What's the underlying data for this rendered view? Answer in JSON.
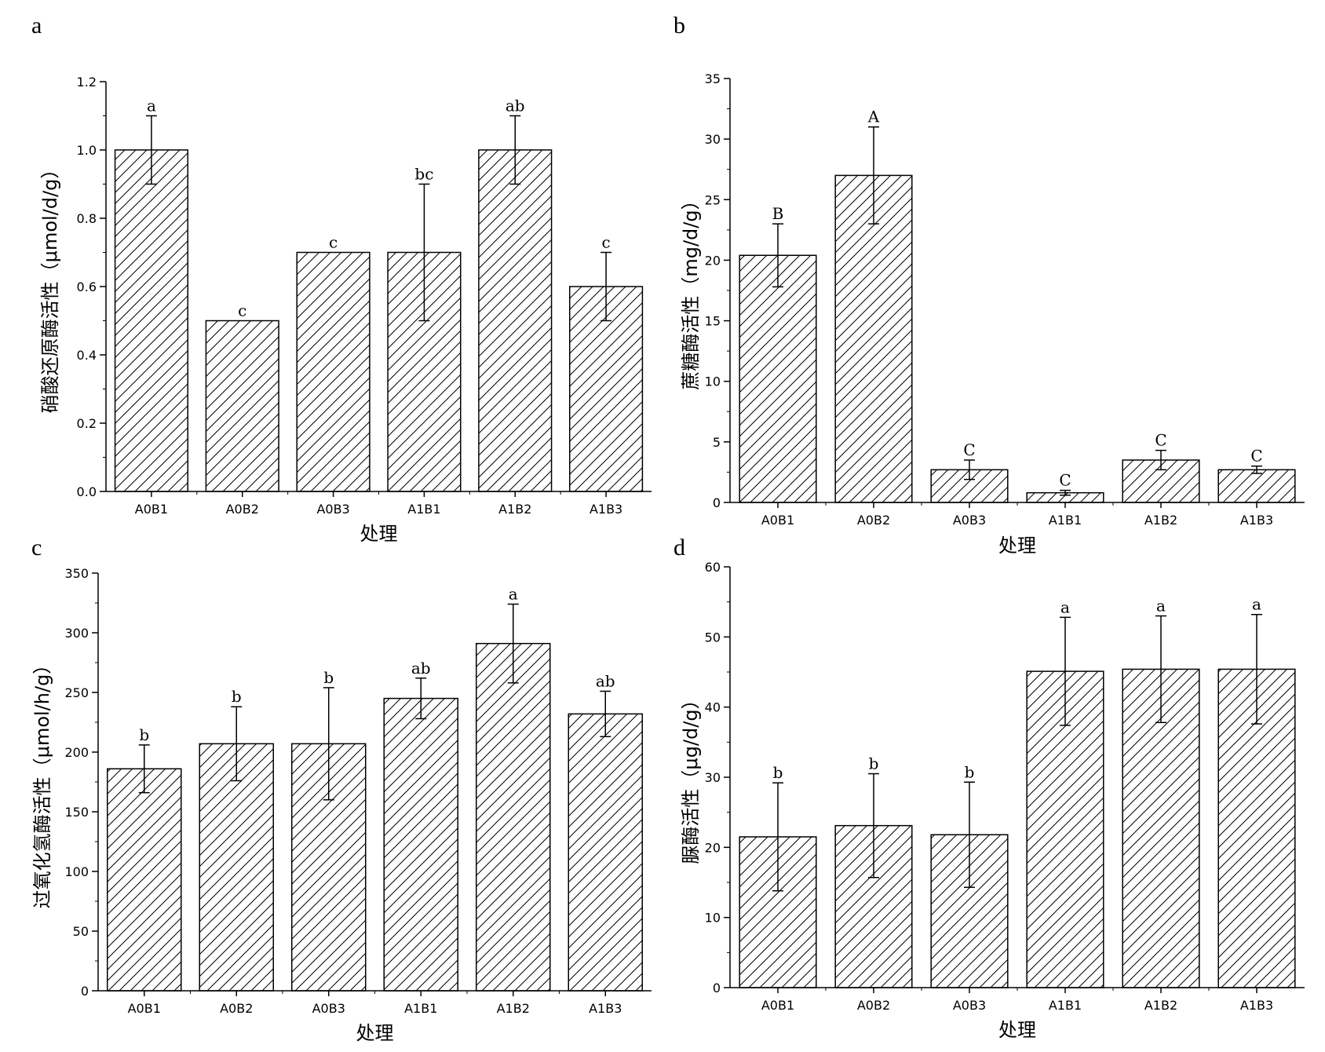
{
  "chart_data": [
    {
      "panel": "a",
      "type": "bar",
      "categories": [
        "A0B1",
        "A0B2",
        "A0B3",
        "A1B1",
        "A1B2",
        "A1B3"
      ],
      "values": [
        1.0,
        0.5,
        0.7,
        0.7,
        1.0,
        0.6
      ],
      "errors": [
        0.1,
        0.0,
        0.0,
        0.2,
        0.1,
        0.1
      ],
      "significance": [
        "a",
        "c",
        "c",
        "bc",
        "ab",
        "c"
      ],
      "xlabel": "处理",
      "ylabel": "硝酸还原酶活性（μmol/d/g）",
      "ylim": [
        0,
        1.2
      ],
      "yticks": [
        "0.0",
        "0.2",
        "0.4",
        "0.6",
        "0.8",
        "1.0",
        "1.2"
      ],
      "grid": false
    },
    {
      "panel": "b",
      "type": "bar",
      "categories": [
        "A0B1",
        "A0B2",
        "A0B3",
        "A1B1",
        "A1B2",
        "A1B3"
      ],
      "values": [
        20.4,
        27.0,
        2.7,
        0.8,
        3.5,
        2.7
      ],
      "errors": [
        2.6,
        4.0,
        0.8,
        0.2,
        0.8,
        0.3
      ],
      "significance": [
        "B",
        "A",
        "C",
        "C",
        "C",
        "C"
      ],
      "xlabel": "处理",
      "ylabel": "蔗糖酶活性（mg/d/g）",
      "ylim": [
        0,
        35
      ],
      "yticks": [
        "0",
        "5",
        "10",
        "15",
        "20",
        "25",
        "30",
        "35"
      ],
      "grid": false
    },
    {
      "panel": "c",
      "type": "bar",
      "categories": [
        "A0B1",
        "A0B2",
        "A0B3",
        "A1B1",
        "A1B2",
        "A1B3"
      ],
      "values": [
        186,
        207,
        207,
        245,
        291,
        232
      ],
      "errors": [
        20,
        31,
        47,
        17,
        33,
        19
      ],
      "significance": [
        "b",
        "b",
        "b",
        "ab",
        "a",
        "ab"
      ],
      "xlabel": "处理",
      "ylabel": "过氧化氢酶活性（μmol/h/g）",
      "ylim": [
        0,
        350
      ],
      "yticks": [
        "0",
        "50",
        "100",
        "150",
        "200",
        "250",
        "300",
        "350"
      ],
      "grid": false
    },
    {
      "panel": "d",
      "type": "bar",
      "categories": [
        "A0B1",
        "A0B2",
        "A0B3",
        "A1B1",
        "A1B2",
        "A1B3"
      ],
      "values": [
        21.5,
        23.1,
        21.8,
        45.1,
        45.4,
        45.4
      ],
      "errors": [
        7.7,
        7.4,
        7.5,
        7.7,
        7.6,
        7.8
      ],
      "significance": [
        "b",
        "b",
        "b",
        "a",
        "a",
        "a"
      ],
      "xlabel": "处理",
      "ylabel": "脲酶活性（μg/d/g）",
      "ylim": [
        0,
        60
      ],
      "yticks": [
        "0",
        "10",
        "20",
        "30",
        "40",
        "50",
        "60"
      ],
      "grid": false
    }
  ]
}
